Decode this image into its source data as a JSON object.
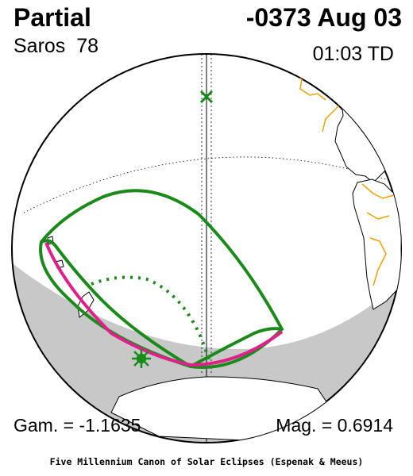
{
  "header": {
    "eclipse_type": "Partial",
    "date": "-0373 Aug 03",
    "saros_label": "Saros",
    "saros_number": "78",
    "time_td": "01:03 TD"
  },
  "footer": {
    "gamma": "Gam. = -1.1635",
    "magnitude": "Mag. = 0.6914",
    "credit": "Five Millennium Canon of Solar Eclipses (Espenak & Meeus)"
  },
  "colors": {
    "penumbra_outline": "#1a8a1a",
    "rise_set_curve": "#e0208a",
    "coastline_modern": "#f0a000",
    "night_shading": "#c8c8c8",
    "greatest_eclipse_marker": "#1a8a1a"
  },
  "icons": {
    "greatest_eclipse": "star-burst-icon",
    "sub_solar_point": "x-cross-icon"
  }
}
